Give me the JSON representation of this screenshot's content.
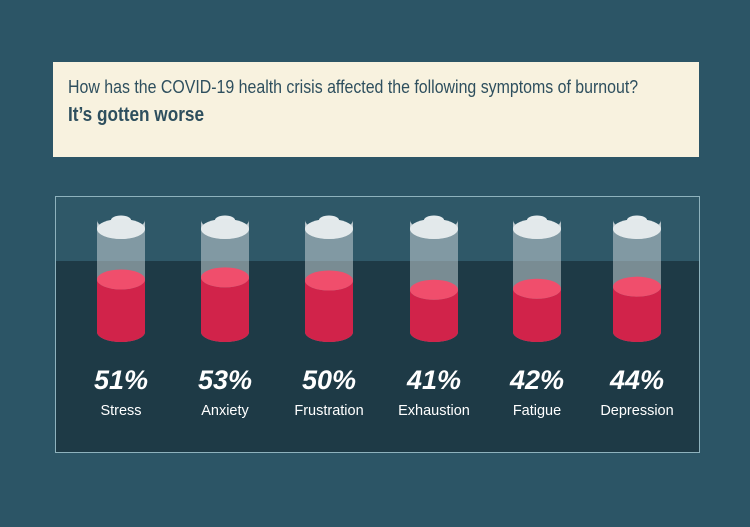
{
  "header": {
    "question": "How has the COVID-19 health crisis affected the following symptoms of burnout?",
    "subtitle": "It’s gotten worse"
  },
  "colors": {
    "background": "#2c5566",
    "header_bg": "#f8f2df",
    "header_text": "#2e4f5e",
    "fill_top": "#f04e6c",
    "fill_side": "#d1234a",
    "label_text": "#ffffff"
  },
  "chart_data": {
    "type": "bar",
    "categories": [
      "Stress",
      "Anxiety",
      "Frustration",
      "Exhaustion",
      "Fatigue",
      "Depression"
    ],
    "values": [
      51,
      53,
      50,
      41,
      42,
      44
    ],
    "value_labels": [
      "51%",
      "53%",
      "50%",
      "41%",
      "42%",
      "44%"
    ],
    "title": "How has the COVID-19 health crisis affected the following symptoms of burnout?",
    "subtitle": "It’s gotten worse",
    "ylim": [
      0,
      100
    ]
  }
}
